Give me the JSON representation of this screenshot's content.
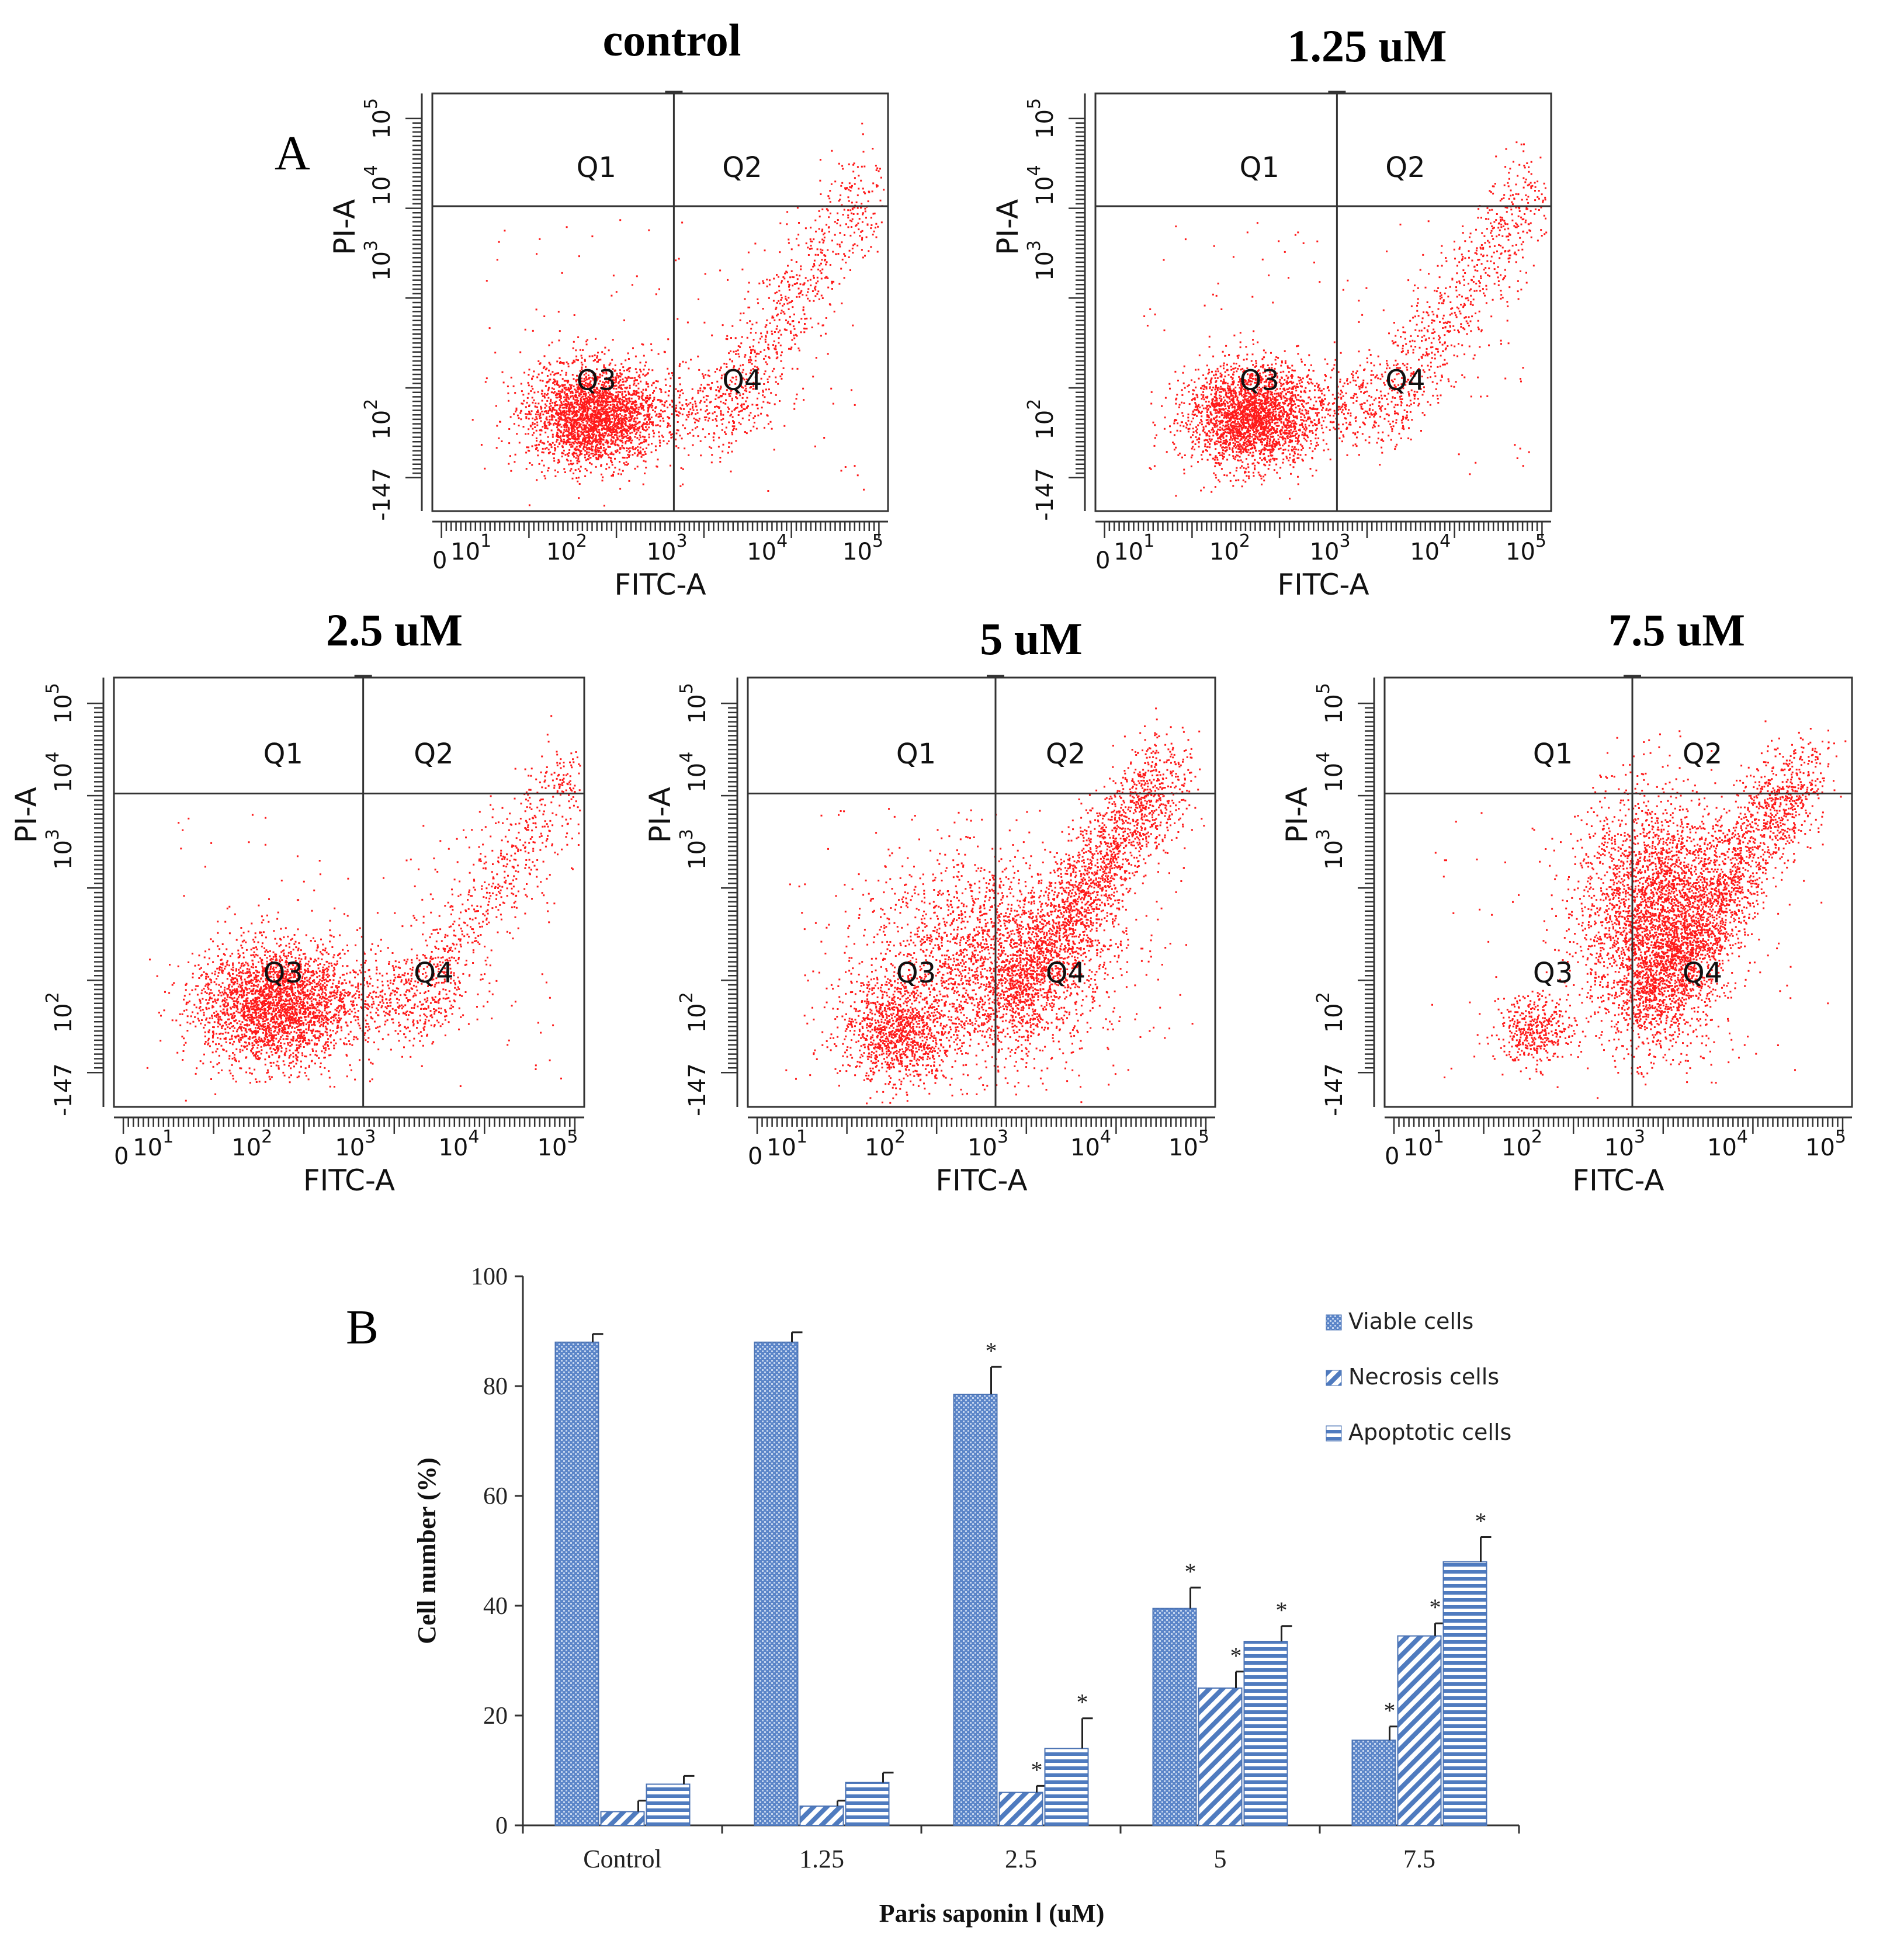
{
  "panel_letters": {
    "a": "A",
    "b": "B"
  },
  "flow_plots": [
    {
      "title": "control"
    },
    {
      "title": "1.25 uM"
    },
    {
      "title": "2.5 uM"
    },
    {
      "title": "5 uM"
    },
    {
      "title": "7.5 uM"
    }
  ],
  "flow_axes": {
    "x_label": "FITC-A",
    "y_label": "PI-A",
    "quadrants": [
      "Q1",
      "Q2",
      "Q3",
      "Q4"
    ],
    "x_ticks": [
      {
        "base": "0",
        "exp": ""
      },
      {
        "base": "10",
        "exp": "1"
      },
      {
        "base": "10",
        "exp": "2"
      },
      {
        "base": "10",
        "exp": "3"
      },
      {
        "base": "10",
        "exp": "4"
      },
      {
        "base": "10",
        "exp": "5"
      }
    ],
    "y_ticks": [
      {
        "base": "-147",
        "exp": ""
      },
      {
        "base": "10",
        "exp": "2"
      },
      {
        "base": "10",
        "exp": "3"
      },
      {
        "base": "10",
        "exp": "4"
      },
      {
        "base": "10",
        "exp": "5"
      }
    ]
  },
  "chart_data": {
    "type": "bar",
    "title": "",
    "xlabel": "Paris saponin Ⅰ (uM)",
    "ylabel": "Cell number (%)",
    "ylim": [
      0,
      100
    ],
    "yticks": [
      0,
      20,
      40,
      60,
      80,
      100
    ],
    "categories": [
      "Control",
      "1.25",
      "2.5",
      "5",
      "7.5"
    ],
    "series": [
      {
        "name": "Viable cells",
        "values": [
          88,
          88,
          78.5,
          39.5,
          15.5
        ],
        "errors": [
          1.5,
          1.8,
          5,
          3.8,
          2.5
        ],
        "significant": [
          false,
          false,
          true,
          true,
          true
        ]
      },
      {
        "name": "Necrosis cells",
        "values": [
          2.5,
          3.5,
          6,
          25,
          34.5
        ],
        "errors": [
          2,
          1,
          1.2,
          3,
          2.3
        ],
        "significant": [
          false,
          false,
          true,
          true,
          true
        ]
      },
      {
        "name": "Apoptotic cells",
        "values": [
          7.5,
          7.8,
          14,
          33.5,
          48
        ],
        "errors": [
          1.5,
          1.8,
          5.5,
          2.8,
          4.5
        ],
        "significant": [
          false,
          false,
          true,
          true,
          true
        ]
      }
    ],
    "significance_marker": "*",
    "legend_position": "top-right"
  }
}
